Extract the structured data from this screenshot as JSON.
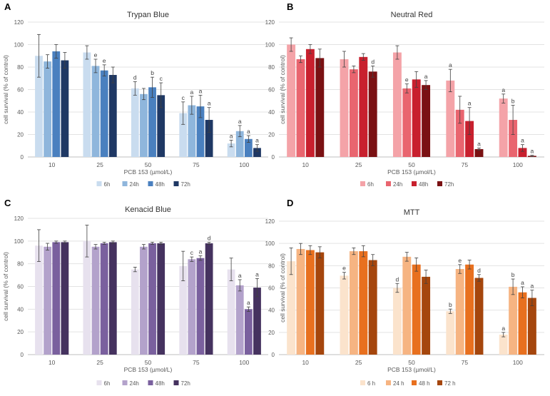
{
  "chart_data": [
    {
      "panel": "A",
      "type": "bar",
      "title": "Trypan Blue",
      "xlabel": "PCB 153 (µmol/L)",
      "ylabel": "cell survival (% of control)",
      "ylim": [
        0,
        120
      ],
      "yticks": [
        0,
        20,
        40,
        60,
        80,
        100,
        120
      ],
      "categories": [
        "10",
        "25",
        "50",
        "75",
        "100"
      ],
      "series": [
        {
          "name": "6h",
          "color": "#c9dcef",
          "values": [
            90,
            93,
            61,
            39,
            12
          ],
          "errors": [
            19,
            6,
            6,
            10,
            3
          ],
          "letters": [
            "",
            "",
            "d",
            "c",
            "a"
          ]
        },
        {
          "name": "24h",
          "color": "#8fb6dc",
          "values": [
            85,
            81,
            56,
            46,
            23
          ],
          "errors": [
            6,
            6,
            5,
            8,
            5
          ],
          "letters": [
            "",
            "e",
            "",
            "a",
            "a"
          ]
        },
        {
          "name": "48h",
          "color": "#4a80bf",
          "values": [
            94,
            77,
            62,
            45,
            16
          ],
          "errors": [
            6,
            5,
            9,
            10,
            3
          ],
          "letters": [
            "",
            "e",
            "b",
            "a",
            "a"
          ]
        },
        {
          "name": "72h",
          "color": "#1f3864",
          "values": [
            86,
            73,
            55,
            33,
            8
          ],
          "errors": [
            7,
            7,
            11,
            11,
            3
          ],
          "letters": [
            "",
            "",
            "c",
            "a",
            "a"
          ]
        }
      ]
    },
    {
      "panel": "B",
      "type": "bar",
      "title": "Neutral Red",
      "xlabel": "PCB 153 (µmol/L)",
      "ylabel": "cell survival (% of control)",
      "ylim": [
        0,
        120
      ],
      "yticks": [
        0,
        20,
        40,
        60,
        80,
        100,
        120
      ],
      "categories": [
        "10",
        "25",
        "50",
        "75",
        "100"
      ],
      "series": [
        {
          "name": "6h",
          "color": "#f4a3a8",
          "values": [
            100,
            87,
            93,
            68,
            52
          ],
          "errors": [
            6,
            7,
            6,
            10,
            4
          ],
          "letters": [
            "",
            "",
            "",
            "a",
            "a"
          ]
        },
        {
          "name": "24h",
          "color": "#e9656f",
          "values": [
            87,
            78,
            61,
            42,
            33
          ],
          "errors": [
            3,
            3,
            4,
            12,
            13
          ],
          "letters": [
            "",
            "",
            "e",
            "",
            "b"
          ]
        },
        {
          "name": "48h",
          "color": "#c8202e",
          "values": [
            96,
            89,
            69,
            32,
            8
          ],
          "errors": [
            4,
            3,
            7,
            12,
            3
          ],
          "letters": [
            "",
            "",
            "",
            "a",
            "a"
          ]
        },
        {
          "name": "72h",
          "color": "#7a1113",
          "values": [
            88,
            76,
            64,
            7,
            1
          ],
          "errors": [
            8,
            5,
            4,
            1,
            0.5
          ],
          "letters": [
            "",
            "d",
            "a",
            "a",
            "a"
          ]
        }
      ]
    },
    {
      "panel": "C",
      "type": "bar",
      "title": "Kenacid Blue",
      "xlabel": "PCB 153 (µmol/L)",
      "ylabel": "cell survival (% of control)",
      "ylim": [
        0,
        120
      ],
      "yticks": [
        0,
        20,
        40,
        60,
        80,
        100,
        120
      ],
      "categories": [
        "10",
        "25",
        "50",
        "75",
        "100"
      ],
      "series": [
        {
          "name": "6h",
          "color": "#e7e1ee",
          "values": [
            96,
            100,
            75,
            78,
            75
          ],
          "errors": [
            14,
            14,
            2,
            13,
            10
          ],
          "letters": [
            "",
            "",
            "",
            "",
            ""
          ]
        },
        {
          "name": "24h",
          "color": "#b3a2cb",
          "values": [
            95,
            95,
            95,
            84,
            61
          ],
          "errors": [
            3,
            2,
            2,
            2,
            5
          ],
          "letters": [
            "",
            "",
            "",
            "c",
            "a"
          ]
        },
        {
          "name": "48h",
          "color": "#7a609e",
          "values": [
            99,
            98,
            98,
            85,
            40
          ],
          "errors": [
            1,
            1,
            1,
            2,
            2
          ],
          "letters": [
            "",
            "",
            "",
            "a",
            "a"
          ]
        },
        {
          "name": "72h",
          "color": "#45325f",
          "values": [
            99,
            99,
            98,
            98,
            59
          ],
          "errors": [
            1,
            1,
            1,
            1,
            8
          ],
          "letters": [
            "",
            "",
            "",
            "d",
            "a"
          ]
        }
      ]
    },
    {
      "panel": "D",
      "type": "bar",
      "title": "MTT",
      "xlabel": "PCB 153 (µmol/L)",
      "ylabel": "cell survival (% of control)",
      "ylim": [
        0,
        120
      ],
      "yticks": [
        0,
        20,
        40,
        60,
        80,
        100,
        120
      ],
      "categories": [
        "10",
        "25",
        "50",
        "75",
        "100"
      ],
      "series": [
        {
          "name": "6 h",
          "color": "#fbe3cc",
          "values": [
            84,
            71,
            60,
            39,
            18
          ],
          "errors": [
            12,
            3,
            4,
            2,
            2
          ],
          "letters": [
            "",
            "e",
            "d",
            "b",
            "a"
          ]
        },
        {
          "name": "24 h",
          "color": "#f6b482",
          "values": [
            95,
            93,
            88,
            77,
            61
          ],
          "errors": [
            5,
            3,
            4,
            4,
            7
          ],
          "letters": [
            "",
            "",
            "",
            "e",
            "b"
          ]
        },
        {
          "name": "48 h",
          "color": "#e8701f",
          "values": [
            94,
            93,
            81,
            81,
            56
          ],
          "errors": [
            4,
            5,
            6,
            4,
            5
          ],
          "letters": [
            "",
            "",
            "",
            "",
            "a"
          ]
        },
        {
          "name": "72 h",
          "color": "#a5460d",
          "values": [
            92,
            85,
            70,
            69,
            51
          ],
          "errors": [
            5,
            5,
            6,
            3,
            7
          ],
          "letters": [
            "",
            "",
            "",
            "d",
            "a"
          ]
        }
      ]
    }
  ]
}
